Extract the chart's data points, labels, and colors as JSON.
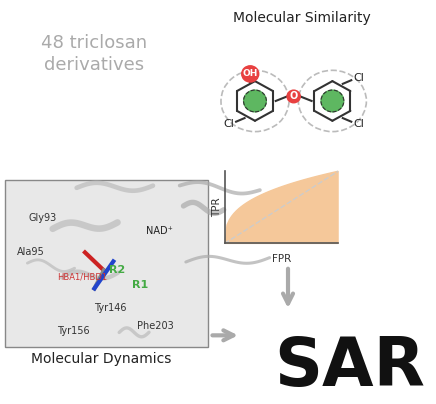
{
  "bg_color": "#ffffff",
  "title_mol_sim": "Molecular Similarity",
  "title_mol_dyn": "Molecular Dynamics",
  "text_48": "48 triclosan\nderivatives",
  "text_sar": "SAR",
  "tpr_label": "TPR",
  "fpr_label": "FPR",
  "roc_fill_color": "#f5c89a",
  "roc_line_color": "#cccccc",
  "arrow_color": "#aaaaaa",
  "label_color": "#333333",
  "nad_color": "#222222",
  "hba_color": "#cc3333",
  "r_label_color": "#44aa44",
  "sar_color": "#111111",
  "mol_sim_color": "#222222",
  "mol_dyn_color": "#222222",
  "text48_color": "#aaaaaa",
  "md_bg": "#e8e8e8",
  "md_border": "#888888"
}
